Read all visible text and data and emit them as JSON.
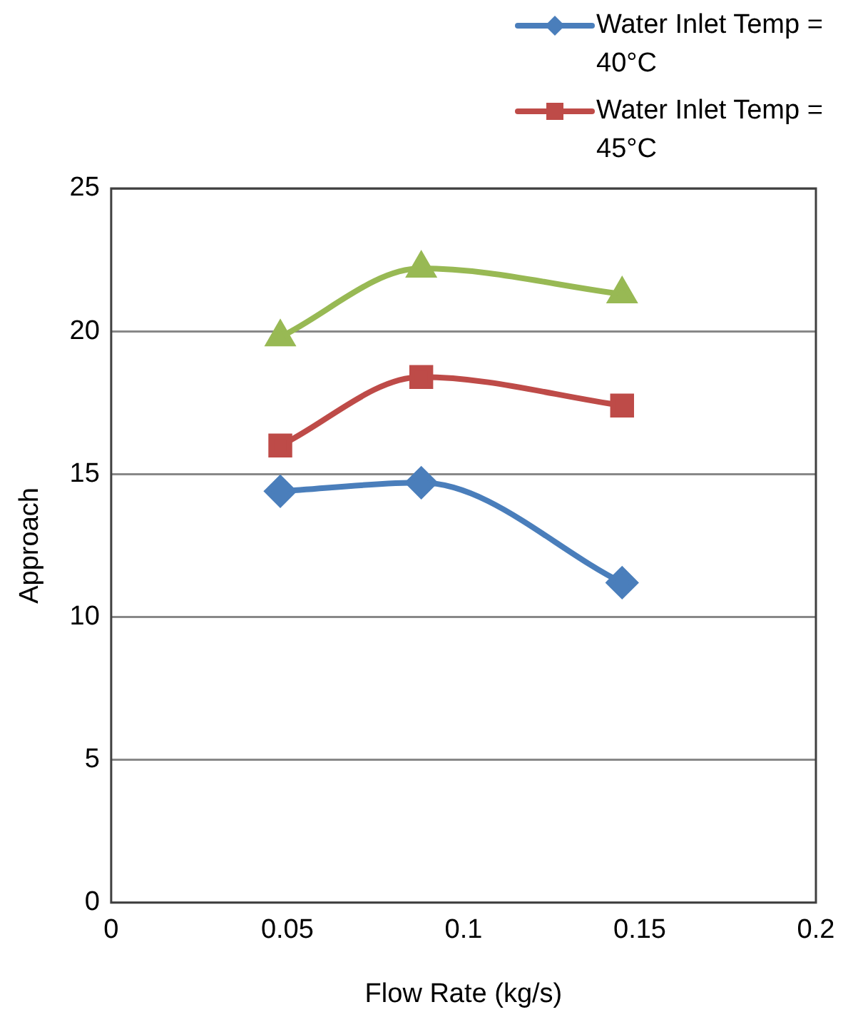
{
  "chart_data": {
    "type": "line",
    "xlabel": "Flow Rate (kg/s)",
    "ylabel": "Approach",
    "x": [
      0.048,
      0.088,
      0.145
    ],
    "xlim": [
      0,
      0.2
    ],
    "xticks": [
      {
        "value": 0,
        "label": "0"
      },
      {
        "value": 0.05,
        "label": "0.05"
      },
      {
        "value": 0.1,
        "label": "0.1"
      },
      {
        "value": 0.15,
        "label": "0.15"
      },
      {
        "value": 0.2,
        "label": "0.2"
      }
    ],
    "ylim": [
      0,
      25
    ],
    "yticks": [
      0,
      5,
      10,
      15,
      20,
      25
    ],
    "grid": "y",
    "legend": "top right",
    "series": [
      {
        "name": "Water Inlet Temp = 40°C",
        "color": "#4a7ebb",
        "marker": "diamond",
        "values": [
          14.4,
          14.7,
          11.2
        ]
      },
      {
        "name": "Water Inlet Temp = 45°C",
        "color": "#be4b48",
        "marker": "square",
        "values": [
          16.0,
          18.4,
          17.4
        ]
      },
      {
        "color": "#98b954",
        "marker": "triangle",
        "values": [
          19.8,
          22.2,
          21.3
        ]
      }
    ]
  }
}
